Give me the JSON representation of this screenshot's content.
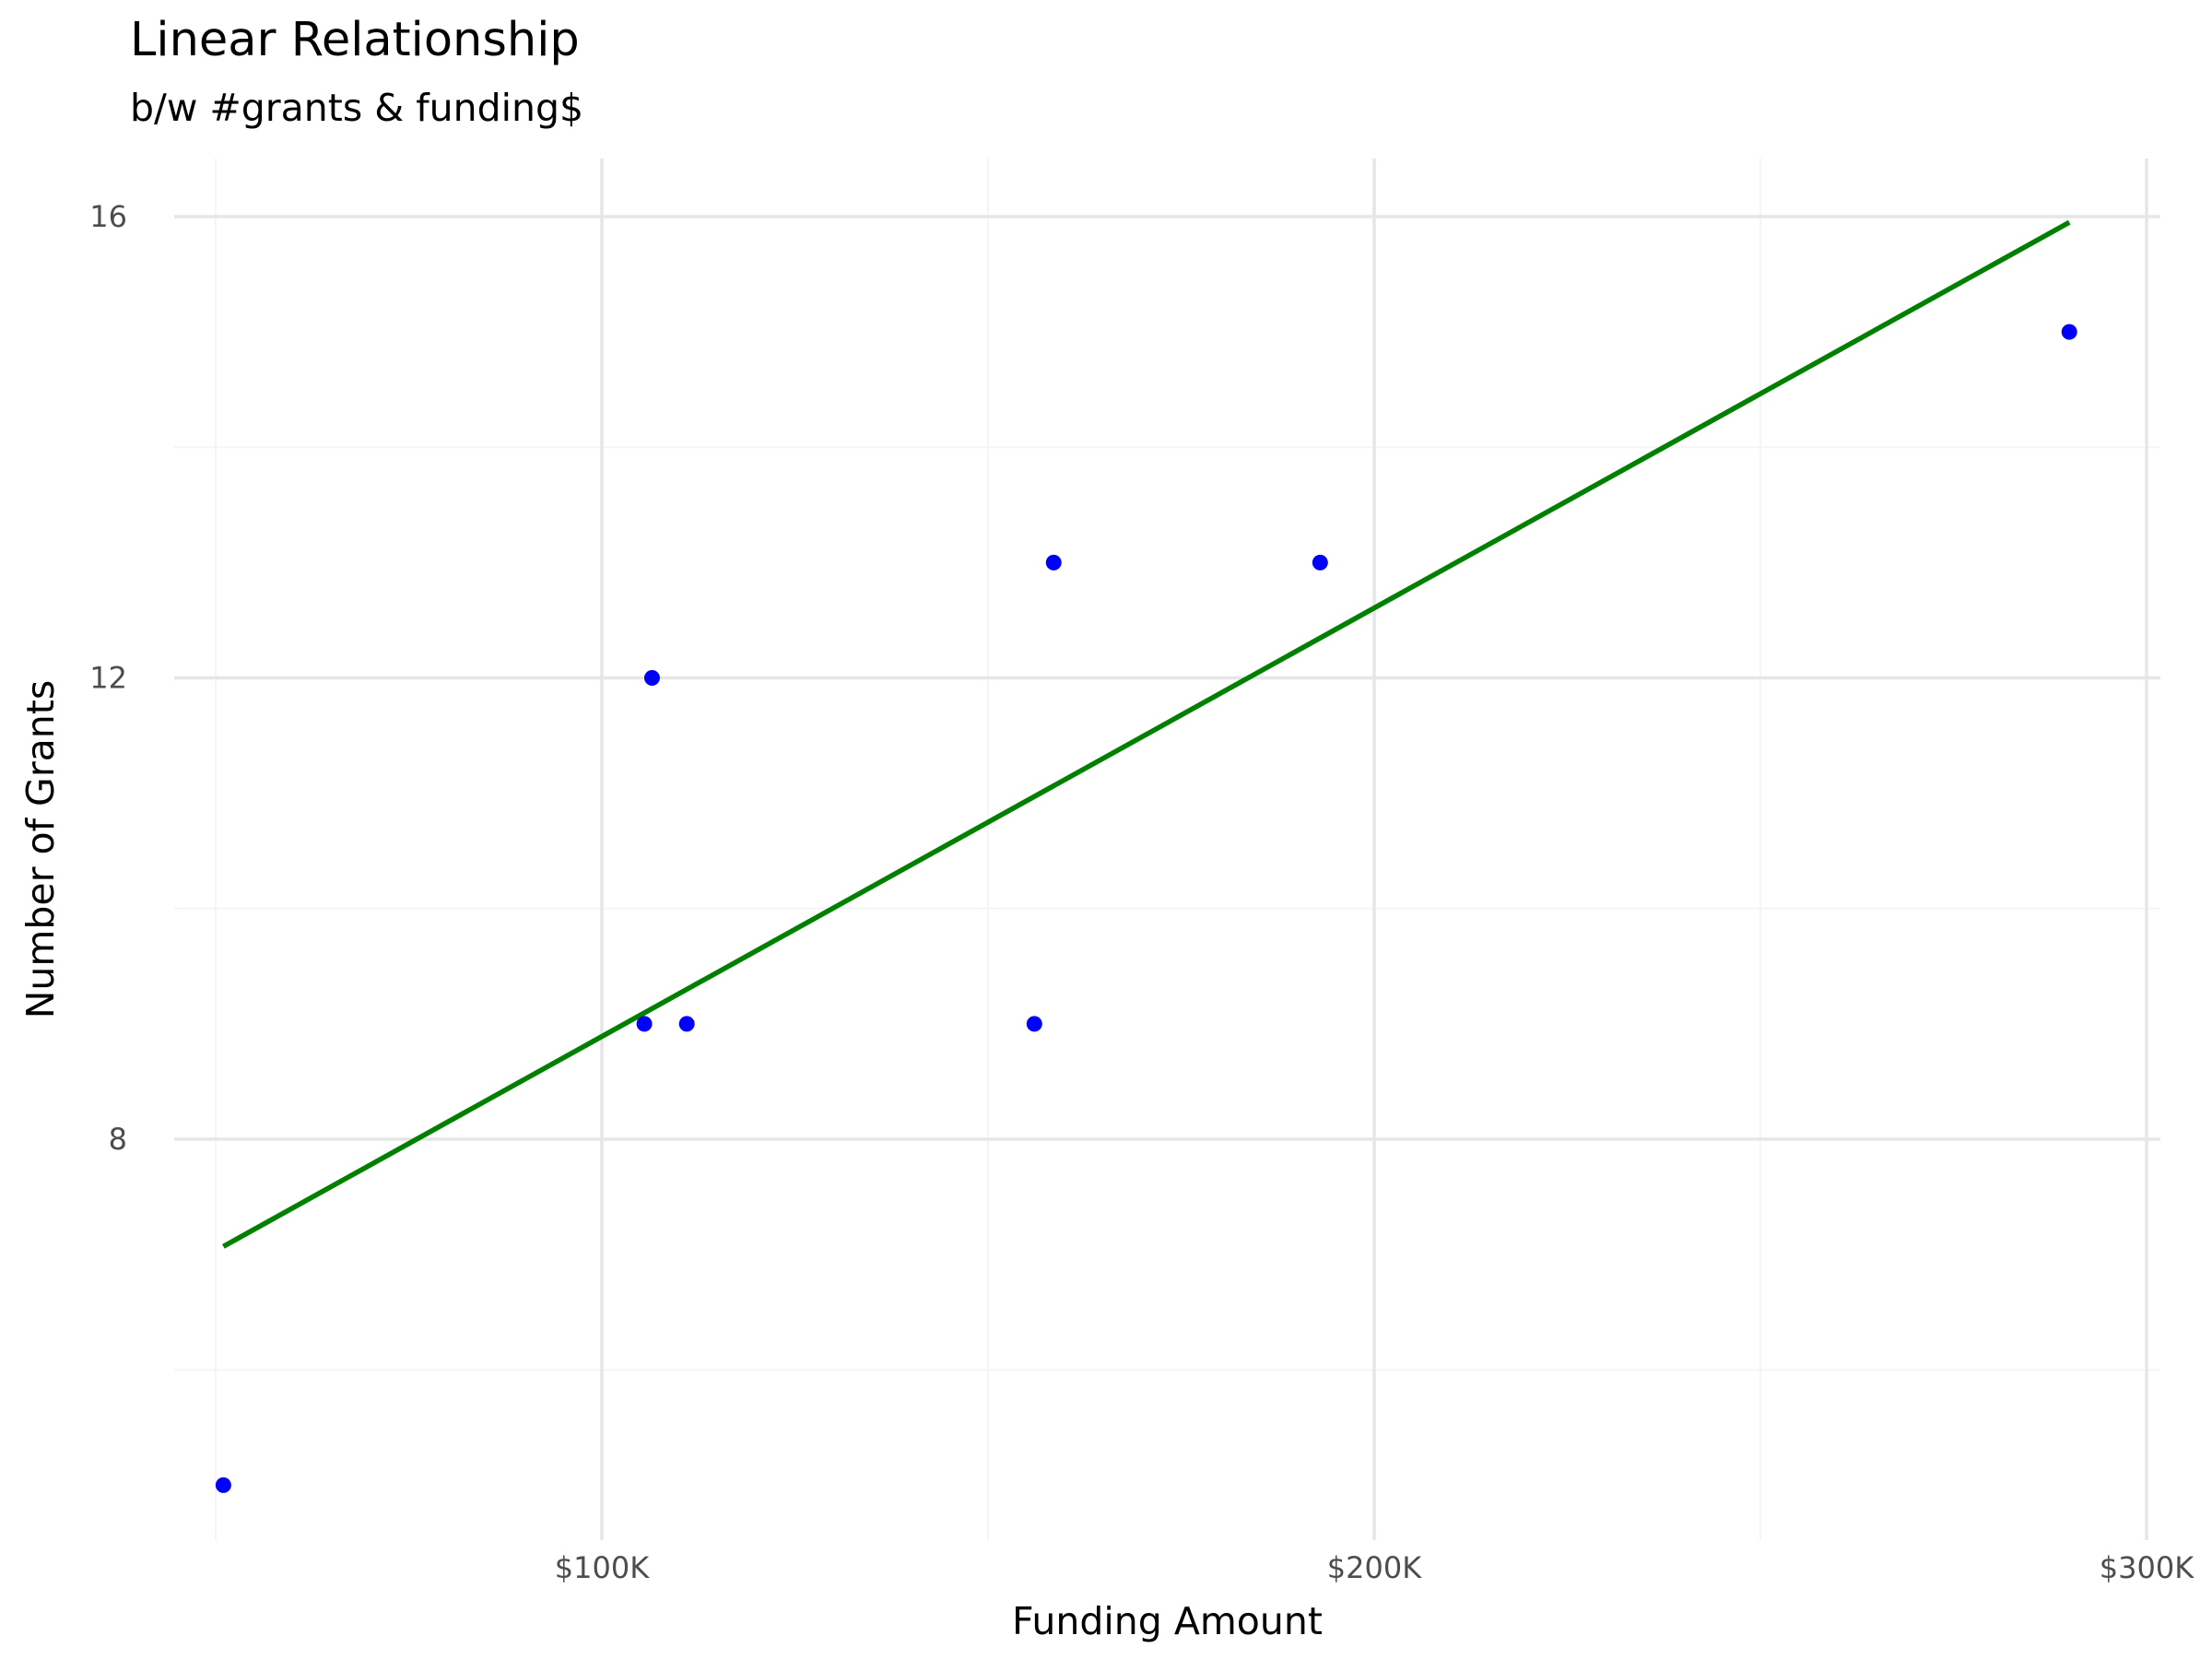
{
  "chart_data": {
    "type": "scatter",
    "title": "Linear Relationship",
    "subtitle": "b/w #grants & funding$",
    "xlabel": "Funding Amount",
    "ylabel": "Number of Grants",
    "xlim": [
      50000,
      300000
    ],
    "ylim": [
      4.5,
      16.5
    ],
    "x_ticks": [
      100000,
      200000,
      300000
    ],
    "x_tick_labels": [
      "$100K",
      "$200K",
      "$300K"
    ],
    "y_ticks": [
      8,
      12,
      16
    ],
    "y_tick_labels": [
      "8",
      "12",
      "16"
    ],
    "grid": true,
    "points": [
      {
        "x": 51000,
        "y": 5
      },
      {
        "x": 105500,
        "y": 9
      },
      {
        "x": 106500,
        "y": 12
      },
      {
        "x": 111000,
        "y": 9
      },
      {
        "x": 156000,
        "y": 9
      },
      {
        "x": 158500,
        "y": 13
      },
      {
        "x": 193000,
        "y": 13
      },
      {
        "x": 290000,
        "y": 15
      }
    ],
    "trend_line": {
      "x": [
        51000,
        290000
      ],
      "y": [
        7.07,
        15.95
      ]
    },
    "colors": {
      "points": "#0000ff",
      "trend_line": "#008000",
      "grid_major": "#e6e6e6",
      "grid_minor": "#f5f5f5",
      "text": "#4d4d4d"
    }
  }
}
